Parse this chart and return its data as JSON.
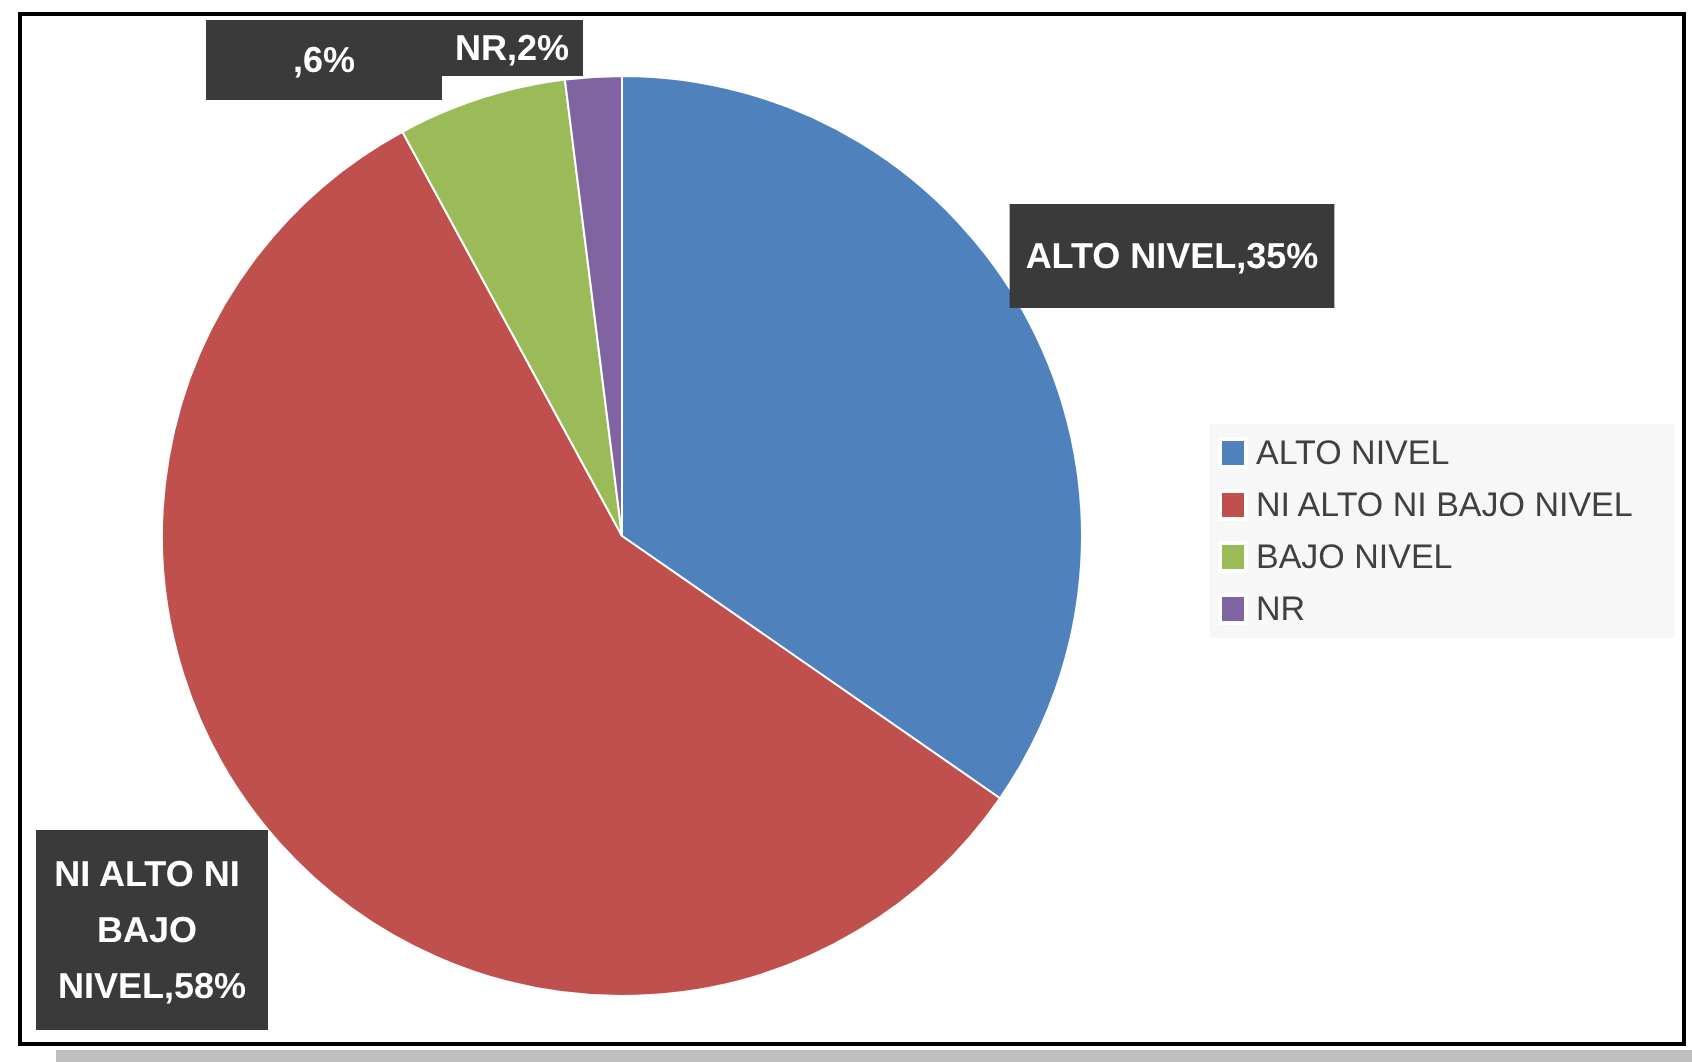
{
  "chart_data": {
    "type": "pie",
    "categories": [
      "ALTO NIVEL",
      "NI ALTO NI BAJO NIVEL",
      "BAJO NIVEL",
      "NR"
    ],
    "values": [
      35,
      58,
      6,
      2
    ],
    "colors": [
      "#4f81bd",
      "#c0504d",
      "#9bbb59",
      "#8064a2"
    ],
    "value_labels": [
      "ALTO NIVEL,35%",
      "NI ALTO NI BAJO NIVEL,58%",
      ",6%",
      "NR,2%"
    ],
    "legend": "right"
  }
}
